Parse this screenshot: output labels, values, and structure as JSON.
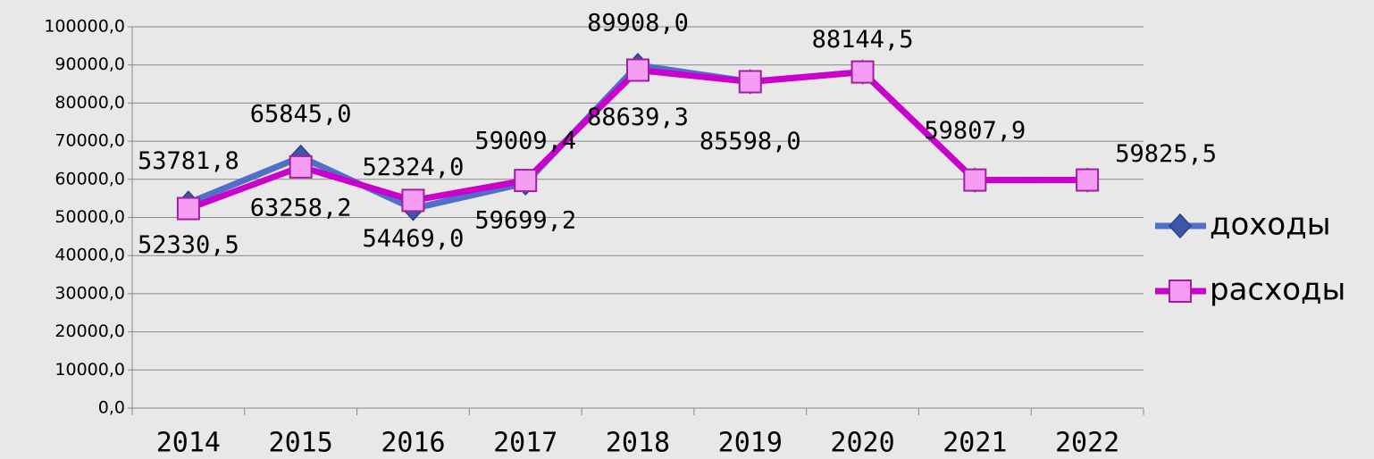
{
  "chart_data": {
    "type": "line",
    "categories": [
      "2014",
      "2015",
      "2016",
      "2017",
      "2018",
      "2019",
      "2020",
      "2021",
      "2022"
    ],
    "series": [
      {
        "name": "доходы",
        "color": "#4f6fc8",
        "values": [
          53781.8,
          65845.0,
          52324.0,
          59009.4,
          89908.0,
          85598.0,
          88144.5,
          59807.9,
          59825.5
        ],
        "value_labels": [
          "53781,8",
          "65845,0",
          "52324,0",
          "59009,4",
          "89908,0",
          "85598,0",
          "88144,5",
          "59807,9",
          "59825,5"
        ]
      },
      {
        "name": "расходы",
        "color": "#cc00cc",
        "values": [
          52330.5,
          63258.2,
          54469.0,
          59699.2,
          88639.3,
          85598.0,
          88144.5,
          59807.9,
          59825.5
        ],
        "value_labels": [
          "52330,5",
          "63258,2",
          "54469,0",
          "59699,2",
          "88639,3",
          null,
          null,
          null,
          null
        ]
      }
    ],
    "ylim": [
      0,
      100000
    ],
    "yticks": [
      {
        "value": 0,
        "label": "0,0"
      },
      {
        "value": 10000,
        "label": "10000,0"
      },
      {
        "value": 20000,
        "label": "20000,0"
      },
      {
        "value": 30000,
        "label": "30000,0"
      },
      {
        "value": 40000,
        "label": "40000,0"
      },
      {
        "value": 50000,
        "label": "50000,0"
      },
      {
        "value": 60000,
        "label": "60000,0"
      },
      {
        "value": 70000,
        "label": "70000,0"
      },
      {
        "value": 80000,
        "label": "80000,0"
      },
      {
        "value": 90000,
        "label": "90000,0"
      },
      {
        "value": 100000,
        "label": "100000,0"
      }
    ],
    "grid": true,
    "legend": "right"
  }
}
